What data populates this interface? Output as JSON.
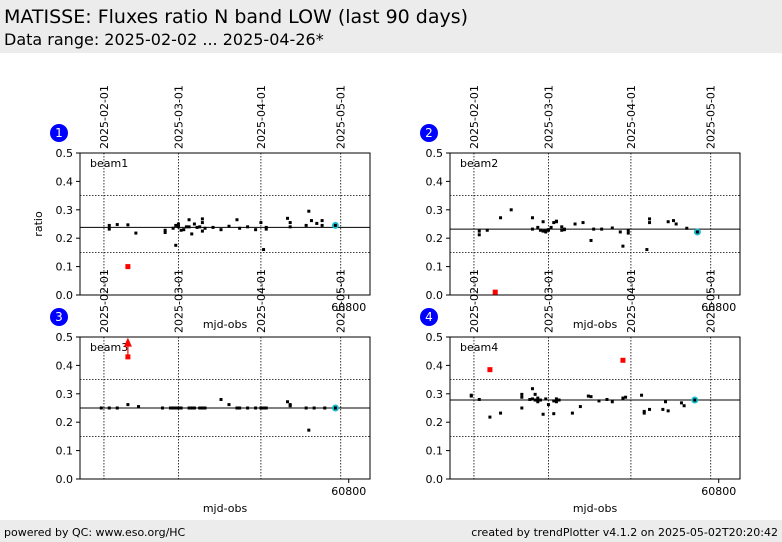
{
  "header": {
    "title": "MATISSE: Fluxes ratio N band LOW (last 90 days)",
    "subtitle": "Data range: 2025-02-02 ... 2025-04-26*"
  },
  "footer": {
    "left": "powered by QC: www.eso.org/HC",
    "right": "created by trendPlotter v4.1.2 on 2025-05-02T20:20:42"
  },
  "colors": {
    "point": "#000000",
    "outlier": "#ff0000",
    "latest": "#17becf",
    "badge": "#0000ff"
  },
  "chart_data": [
    {
      "type": "scatter",
      "panel_number": "1",
      "label": "beam1",
      "xlabel": "mjd-obs",
      "ylabel": "ratio",
      "xlim": [
        60699,
        60808
      ],
      "ylim": [
        0,
        0.5
      ],
      "yticks": [
        "0.0",
        "0.1",
        "0.2",
        "0.3",
        "0.4",
        "0.5"
      ],
      "xticks": [
        {
          "value": 60800,
          "label": "60800"
        }
      ],
      "date_ticks": [
        {
          "value": 60708,
          "label": "2025-02-01"
        },
        {
          "value": 60736,
          "label": "2025-03-01"
        },
        {
          "value": 60767,
          "label": "2025-04-01"
        },
        {
          "value": 60797,
          "label": "2025-05-01"
        }
      ],
      "hlines": [
        0.15,
        0.238,
        0.35
      ],
      "outlier_markers": [],
      "points": [
        [
          60710,
          0.245
        ],
        [
          60710,
          0.232
        ],
        [
          60713,
          0.248
        ],
        [
          60717,
          0.247
        ],
        [
          60720,
          0.218
        ],
        [
          60731,
          0.228
        ],
        [
          60731,
          0.22
        ],
        [
          60734,
          0.235
        ],
        [
          60735,
          0.245
        ],
        [
          60735,
          0.175
        ],
        [
          60736,
          0.25
        ],
        [
          60736,
          0.24
        ],
        [
          60737,
          0.228
        ],
        [
          60738,
          0.23
        ],
        [
          60739,
          0.24
        ],
        [
          60740,
          0.24
        ],
        [
          60740,
          0.265
        ],
        [
          60741,
          0.215
        ],
        [
          60742,
          0.25
        ],
        [
          60743,
          0.238
        ],
        [
          60744,
          0.24
        ],
        [
          60745,
          0.268
        ],
        [
          60745,
          0.255
        ],
        [
          60745,
          0.225
        ],
        [
          60746,
          0.235
        ],
        [
          60749,
          0.238
        ],
        [
          60752,
          0.23
        ],
        [
          60755,
          0.242
        ],
        [
          60758,
          0.265
        ],
        [
          60759,
          0.235
        ],
        [
          60762,
          0.24
        ],
        [
          60765,
          0.23
        ],
        [
          60767,
          0.255
        ],
        [
          60768,
          0.16
        ],
        [
          60769,
          0.238
        ],
        [
          60769,
          0.232
        ],
        [
          60777,
          0.27
        ],
        [
          60778,
          0.255
        ],
        [
          60778,
          0.24
        ],
        [
          60784,
          0.245
        ],
        [
          60785,
          0.295
        ],
        [
          60786,
          0.262
        ],
        [
          60788,
          0.252
        ],
        [
          60790,
          0.262
        ],
        [
          60790,
          0.245
        ]
      ],
      "outliers": [
        [
          60717,
          0.1
        ]
      ],
      "latest": [
        60795,
        0.245
      ]
    },
    {
      "type": "scatter",
      "panel_number": "2",
      "label": "beam2",
      "xlabel": "mjd-obs",
      "ylabel": "",
      "xlim": [
        60699,
        60808
      ],
      "ylim": [
        0,
        0.5
      ],
      "yticks": [
        "0.0",
        "0.1",
        "0.2",
        "0.3",
        "0.4",
        "0.5"
      ],
      "xticks": [
        {
          "value": 60800,
          "label": "60800"
        }
      ],
      "date_ticks": [
        {
          "value": 60708,
          "label": "2025-02-01"
        },
        {
          "value": 60736,
          "label": "2025-03-01"
        },
        {
          "value": 60767,
          "label": "2025-04-01"
        },
        {
          "value": 60797,
          "label": "2025-05-01"
        }
      ],
      "hlines": [
        0.15,
        0.232,
        0.35
      ],
      "outlier_markers": [],
      "points": [
        [
          60710,
          0.225
        ],
        [
          60710,
          0.212
        ],
        [
          60713,
          0.228
        ],
        [
          60718,
          0.272
        ],
        [
          60722,
          0.3
        ],
        [
          60730,
          0.272
        ],
        [
          60730,
          0.232
        ],
        [
          60732,
          0.238
        ],
        [
          60733,
          0.228
        ],
        [
          60734,
          0.225
        ],
        [
          60734,
          0.258
        ],
        [
          60735,
          0.225
        ],
        [
          60735,
          0.222
        ],
        [
          60736,
          0.228
        ],
        [
          60736,
          0.23
        ],
        [
          60737,
          0.238
        ],
        [
          60738,
          0.255
        ],
        [
          60739,
          0.26
        ],
        [
          60739,
          0.258
        ],
        [
          60741,
          0.24
        ],
        [
          60741,
          0.228
        ],
        [
          60742,
          0.23
        ],
        [
          60742,
          0.232
        ],
        [
          60746,
          0.25
        ],
        [
          60749,
          0.255
        ],
        [
          60752,
          0.192
        ],
        [
          60753,
          0.232
        ],
        [
          60756,
          0.232
        ],
        [
          60760,
          0.236
        ],
        [
          60763,
          0.222
        ],
        [
          60764,
          0.172
        ],
        [
          60766,
          0.228
        ],
        [
          60766,
          0.218
        ],
        [
          60773,
          0.16
        ],
        [
          60774,
          0.255
        ],
        [
          60774,
          0.268
        ],
        [
          60781,
          0.258
        ],
        [
          60783,
          0.262
        ],
        [
          60784,
          0.25
        ],
        [
          60788,
          0.235
        ]
      ],
      "outliers": [
        [
          60716,
          0.01
        ]
      ],
      "latest": [
        60792,
        0.222
      ]
    },
    {
      "type": "scatter",
      "panel_number": "3",
      "label": "beam3",
      "xlabel": "mjd-obs",
      "ylabel": "",
      "xlim": [
        60699,
        60808
      ],
      "ylim": [
        0,
        0.5
      ],
      "yticks": [
        "0.0",
        "0.1",
        "0.2",
        "0.3",
        "0.4",
        "0.5"
      ],
      "xticks": [
        {
          "value": 60800,
          "label": "60800"
        }
      ],
      "date_ticks": [
        {
          "value": 60708,
          "label": "2025-02-01"
        },
        {
          "value": 60736,
          "label": "2025-03-01"
        },
        {
          "value": 60767,
          "label": "2025-04-01"
        },
        {
          "value": 60797,
          "label": "2025-05-01"
        }
      ],
      "hlines": [
        0.15,
        0.25,
        0.35
      ],
      "outlier_markers": [
        [
          60717,
          0.48
        ]
      ],
      "points": [
        [
          60707,
          0.25
        ],
        [
          60710,
          0.25
        ],
        [
          60713,
          0.25
        ],
        [
          60717,
          0.262
        ],
        [
          60721,
          0.255
        ],
        [
          60730,
          0.25
        ],
        [
          60733,
          0.25
        ],
        [
          60734,
          0.25
        ],
        [
          60735,
          0.25
        ],
        [
          60736,
          0.25
        ],
        [
          60737,
          0.25
        ],
        [
          60740,
          0.25
        ],
        [
          60741,
          0.25
        ],
        [
          60742,
          0.25
        ],
        [
          60744,
          0.25
        ],
        [
          60745,
          0.25
        ],
        [
          60746,
          0.25
        ],
        [
          60752,
          0.28
        ],
        [
          60755,
          0.262
        ],
        [
          60758,
          0.25
        ],
        [
          60759,
          0.25
        ],
        [
          60762,
          0.25
        ],
        [
          60765,
          0.25
        ],
        [
          60767,
          0.25
        ],
        [
          60768,
          0.25
        ],
        [
          60769,
          0.25
        ],
        [
          60777,
          0.272
        ],
        [
          60778,
          0.262
        ],
        [
          60778,
          0.258
        ],
        [
          60784,
          0.25
        ],
        [
          60785,
          0.172
        ],
        [
          60787,
          0.25
        ],
        [
          60791,
          0.25
        ]
      ],
      "outliers": [
        [
          60717,
          0.43
        ]
      ],
      "latest": [
        60795,
        0.25
      ]
    },
    {
      "type": "scatter",
      "panel_number": "4",
      "label": "beam4",
      "xlabel": "mjd-obs",
      "ylabel": "",
      "xlim": [
        60699,
        60808
      ],
      "ylim": [
        0,
        0.5
      ],
      "yticks": [
        "0.0",
        "0.1",
        "0.2",
        "0.3",
        "0.4",
        "0.5"
      ],
      "xticks": [
        {
          "value": 60800,
          "label": "60800"
        }
      ],
      "date_ticks": [
        {
          "value": 60708,
          "label": "2025-02-01"
        },
        {
          "value": 60736,
          "label": "2025-03-01"
        },
        {
          "value": 60767,
          "label": "2025-04-01"
        },
        {
          "value": 60797,
          "label": "2025-05-01"
        }
      ],
      "hlines": [
        0.15,
        0.278,
        0.35
      ],
      "outlier_markers": [],
      "points": [
        [
          60707,
          0.295
        ],
        [
          60707,
          0.292
        ],
        [
          60710,
          0.28
        ],
        [
          60714,
          0.218
        ],
        [
          60718,
          0.232
        ],
        [
          60726,
          0.298
        ],
        [
          60726,
          0.288
        ],
        [
          60726,
          0.25
        ],
        [
          60729,
          0.28
        ],
        [
          60730,
          0.282
        ],
        [
          60730,
          0.318
        ],
        [
          60731,
          0.298
        ],
        [
          60731,
          0.278
        ],
        [
          60732,
          0.272
        ],
        [
          60732,
          0.285
        ],
        [
          60733,
          0.278
        ],
        [
          60734,
          0.228
        ],
        [
          60735,
          0.282
        ],
        [
          60736,
          0.262
        ],
        [
          60738,
          0.275
        ],
        [
          60738,
          0.23
        ],
        [
          60739,
          0.272
        ],
        [
          60739,
          0.282
        ],
        [
          60740,
          0.278
        ],
        [
          60745,
          0.232
        ],
        [
          60748,
          0.255
        ],
        [
          60751,
          0.292
        ],
        [
          60752,
          0.29
        ],
        [
          60755,
          0.275
        ],
        [
          60758,
          0.28
        ],
        [
          60760,
          0.272
        ],
        [
          60764,
          0.285
        ],
        [
          60765,
          0.288
        ],
        [
          60771,
          0.295
        ],
        [
          60772,
          0.238
        ],
        [
          60772,
          0.232
        ],
        [
          60774,
          0.245
        ],
        [
          60779,
          0.245
        ],
        [
          60780,
          0.272
        ],
        [
          60781,
          0.24
        ],
        [
          60786,
          0.268
        ],
        [
          60787,
          0.258
        ]
      ],
      "outliers": [
        [
          60714,
          0.385
        ],
        [
          60764,
          0.418
        ]
      ],
      "latest": [
        60791,
        0.278
      ]
    }
  ]
}
